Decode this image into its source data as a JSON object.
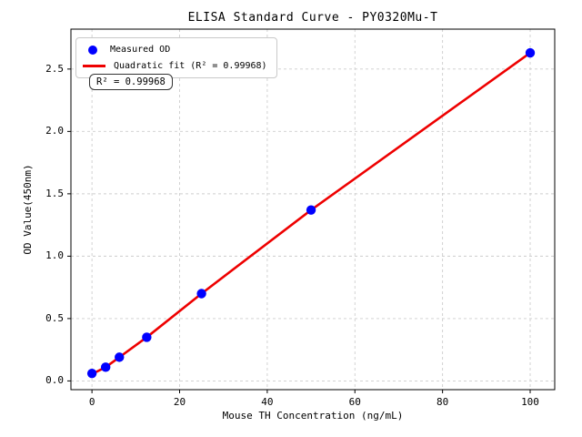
{
  "chart_data": {
    "type": "scatter",
    "title": "ELISA Standard Curve - PY0320Mu-T",
    "xlabel": "Mouse TH Concentration (ng/mL)",
    "ylabel": "OD Value(450nm)",
    "xlim": [
      -4.8,
      105.6
    ],
    "ylim": [
      -0.07,
      2.82
    ],
    "grid": true,
    "grid_color": "#cdcdcd",
    "axis_color": "#000000",
    "legend_position": "upper left",
    "x_ticks": [
      {
        "label": "0",
        "value": 0
      },
      {
        "label": "20",
        "value": 20
      },
      {
        "label": "40",
        "value": 40
      },
      {
        "label": "60",
        "value": 60
      },
      {
        "label": "80",
        "value": 80
      },
      {
        "label": "100",
        "value": 100
      }
    ],
    "y_ticks": [
      {
        "label": "0.0",
        "value": 0.0
      },
      {
        "label": "0.5",
        "value": 0.5
      },
      {
        "label": "1.0",
        "value": 1.0
      },
      {
        "label": "1.5",
        "value": 1.5
      },
      {
        "label": "2.0",
        "value": 2.0
      },
      {
        "label": "2.5",
        "value": 2.5
      }
    ],
    "series": [
      {
        "name": "Measured OD",
        "type": "scatter",
        "color": "#0000ff",
        "x": [
          0,
          3.125,
          6.25,
          12.5,
          25,
          50,
          100
        ],
        "y": [
          0.06,
          0.11,
          0.19,
          0.35,
          0.7,
          1.37,
          2.63
        ]
      },
      {
        "name": "Quadratic fit (R² = 0.99968)",
        "type": "line",
        "color": "#ee0000",
        "x": [
          0,
          3.125,
          6.25,
          12.5,
          25,
          50,
          100
        ],
        "y": [
          0.055,
          0.11,
          0.19,
          0.35,
          0.7,
          1.37,
          2.63
        ]
      }
    ],
    "annotation": {
      "text": "R² = 0.99968"
    }
  }
}
